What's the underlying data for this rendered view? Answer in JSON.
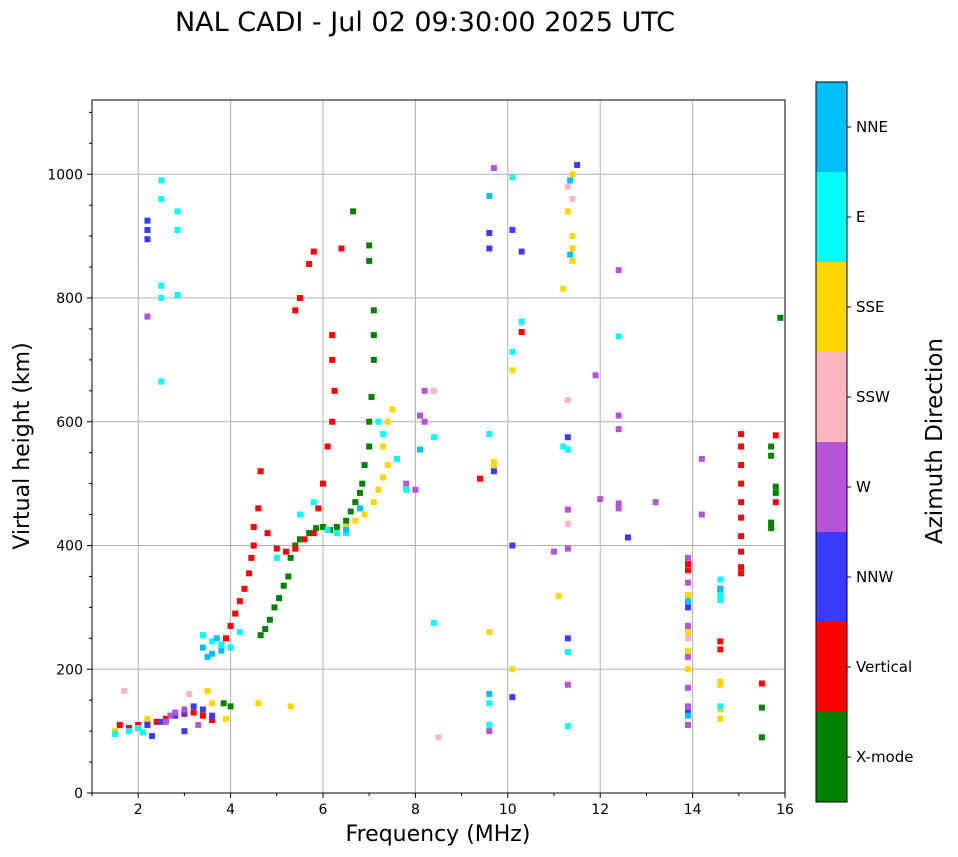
{
  "chart_data": {
    "type": "scatter",
    "title": "NAL CADI - Jul 02 09:30:00 2025 UTC",
    "xlabel": "Frequency (MHz)",
    "ylabel": "Virtual height (km)",
    "xlim": [
      1,
      16
    ],
    "ylim": [
      0,
      1120
    ],
    "xticks": [
      2,
      4,
      6,
      8,
      10,
      12,
      14,
      16
    ],
    "yticks": [
      0,
      200,
      400,
      600,
      800,
      1000
    ],
    "grid": true,
    "colorbar": {
      "title": "Azimuth Direction",
      "categories": [
        "X-mode",
        "Vertical",
        "NNW",
        "W",
        "SSW",
        "SSE",
        "E",
        "NNE"
      ],
      "colors": [
        "#008000",
        "#ff0000",
        "#3b3bff",
        "#b455d6",
        "#ffb6c1",
        "#ffd700",
        "#00ffff",
        "#00bfff"
      ]
    },
    "series": [
      {
        "name": "X-mode",
        "points": [
          [
            3.85,
            145
          ],
          [
            4.0,
            140
          ],
          [
            4.65,
            255
          ],
          [
            4.75,
            265
          ],
          [
            4.85,
            280
          ],
          [
            4.95,
            300
          ],
          [
            5.05,
            315
          ],
          [
            5.15,
            335
          ],
          [
            5.25,
            350
          ],
          [
            5.3,
            380
          ],
          [
            5.4,
            400
          ],
          [
            5.5,
            410
          ],
          [
            5.7,
            420
          ],
          [
            5.85,
            428
          ],
          [
            6.0,
            430
          ],
          [
            6.15,
            425
          ],
          [
            6.3,
            430
          ],
          [
            6.5,
            440
          ],
          [
            6.6,
            455
          ],
          [
            6.7,
            470
          ],
          [
            6.8,
            485
          ],
          [
            6.85,
            500
          ],
          [
            6.9,
            530
          ],
          [
            7.0,
            560
          ],
          [
            7.0,
            600
          ],
          [
            7.05,
            640
          ],
          [
            7.1,
            700
          ],
          [
            7.1,
            740
          ],
          [
            7.1,
            780
          ],
          [
            7.0,
            860
          ],
          [
            7.0,
            885
          ],
          [
            6.65,
            940
          ],
          [
            15.7,
            437
          ],
          [
            15.7,
            428
          ],
          [
            15.8,
            485
          ],
          [
            15.8,
            495
          ],
          [
            15.7,
            560
          ],
          [
            15.7,
            545
          ],
          [
            15.9,
            768
          ],
          [
            15.5,
            138
          ],
          [
            15.5,
            90
          ]
        ]
      },
      {
        "name": "Vertical",
        "points": [
          [
            1.6,
            110
          ],
          [
            1.8,
            105
          ],
          [
            2.0,
            110
          ],
          [
            2.2,
            112
          ],
          [
            2.4,
            115
          ],
          [
            2.6,
            120
          ],
          [
            2.8,
            125
          ],
          [
            3.0,
            128
          ],
          [
            3.2,
            130
          ],
          [
            3.4,
            125
          ],
          [
            3.6,
            118
          ],
          [
            3.9,
            250
          ],
          [
            4.0,
            270
          ],
          [
            4.1,
            290
          ],
          [
            4.2,
            310
          ],
          [
            4.3,
            330
          ],
          [
            4.4,
            355
          ],
          [
            4.45,
            380
          ],
          [
            4.5,
            400
          ],
          [
            4.5,
            430
          ],
          [
            4.6,
            460
          ],
          [
            4.65,
            520
          ],
          [
            4.8,
            420
          ],
          [
            5.0,
            395
          ],
          [
            5.2,
            390
          ],
          [
            5.4,
            395
          ],
          [
            5.6,
            410
          ],
          [
            5.8,
            420
          ],
          [
            5.9,
            460
          ],
          [
            6.0,
            500
          ],
          [
            6.1,
            560
          ],
          [
            6.2,
            600
          ],
          [
            6.25,
            650
          ],
          [
            6.2,
            700
          ],
          [
            6.2,
            740
          ],
          [
            6.4,
            880
          ],
          [
            5.7,
            855
          ],
          [
            5.8,
            875
          ],
          [
            5.5,
            800
          ],
          [
            5.4,
            780
          ],
          [
            9.4,
            508
          ],
          [
            10.3,
            745
          ],
          [
            13.9,
            370
          ],
          [
            13.9,
            360
          ],
          [
            14.6,
            245
          ],
          [
            14.6,
            232
          ],
          [
            14.6,
            330
          ],
          [
            15.05,
            580
          ],
          [
            15.05,
            560
          ],
          [
            15.05,
            530
          ],
          [
            15.05,
            500
          ],
          [
            15.05,
            470
          ],
          [
            15.05,
            445
          ],
          [
            15.05,
            415
          ],
          [
            15.05,
            390
          ],
          [
            15.05,
            365
          ],
          [
            15.05,
            355
          ],
          [
            15.8,
            470
          ],
          [
            15.8,
            578
          ],
          [
            15.5,
            177
          ]
        ]
      },
      {
        "name": "NNW",
        "points": [
          [
            2.0,
            105
          ],
          [
            2.2,
            110
          ],
          [
            2.5,
            115
          ],
          [
            2.8,
            125
          ],
          [
            3.0,
            130
          ],
          [
            3.2,
            140
          ],
          [
            3.4,
            135
          ],
          [
            3.6,
            125
          ],
          [
            2.2,
            895
          ],
          [
            2.2,
            910
          ],
          [
            2.2,
            925
          ],
          [
            9.6,
            880
          ],
          [
            9.6,
            905
          ],
          [
            10.1,
            400
          ],
          [
            10.1,
            910
          ],
          [
            10.1,
            155
          ],
          [
            10.3,
            875
          ],
          [
            11.3,
            575
          ],
          [
            11.3,
            250
          ],
          [
            11.5,
            1015
          ],
          [
            13.9,
            130
          ],
          [
            13.9,
            300
          ],
          [
            12.6,
            413
          ],
          [
            9.7,
            520
          ],
          [
            3.0,
            100
          ],
          [
            2.3,
            92
          ]
        ]
      },
      {
        "name": "W",
        "points": [
          [
            2.6,
            115
          ],
          [
            2.7,
            125
          ],
          [
            2.8,
            130
          ],
          [
            3.0,
            135
          ],
          [
            3.3,
            110
          ],
          [
            8.2,
            650
          ],
          [
            8.4,
            650
          ],
          [
            8.2,
            600
          ],
          [
            8.1,
            610
          ],
          [
            7.8,
            500
          ],
          [
            8.0,
            490
          ],
          [
            9.6,
            100
          ],
          [
            11.0,
            390
          ],
          [
            11.3,
            395
          ],
          [
            11.3,
            175
          ],
          [
            11.3,
            458
          ],
          [
            11.9,
            675
          ],
          [
            12.0,
            475
          ],
          [
            12.4,
            845
          ],
          [
            12.4,
            610
          ],
          [
            12.4,
            588
          ],
          [
            12.4,
            468
          ],
          [
            12.4,
            460
          ],
          [
            13.2,
            470
          ],
          [
            14.2,
            540
          ],
          [
            14.2,
            450
          ],
          [
            13.9,
            380
          ],
          [
            13.9,
            340
          ],
          [
            13.9,
            270
          ],
          [
            13.9,
            220
          ],
          [
            13.9,
            170
          ],
          [
            13.9,
            140
          ],
          [
            13.9,
            110
          ],
          [
            2.2,
            770
          ],
          [
            9.7,
            1010
          ]
        ]
      },
      {
        "name": "SSW",
        "points": [
          [
            1.7,
            165
          ],
          [
            3.1,
            160
          ],
          [
            8.4,
            650
          ],
          [
            8.5,
            90
          ],
          [
            10.3,
            760
          ],
          [
            11.3,
            635
          ],
          [
            11.4,
            960
          ],
          [
            11.3,
            980
          ],
          [
            11.3,
            435
          ],
          [
            13.9,
            250
          ]
        ]
      },
      {
        "name": "SSE",
        "points": [
          [
            1.5,
            100
          ],
          [
            2.2,
            120
          ],
          [
            3.5,
            165
          ],
          [
            3.6,
            145
          ],
          [
            3.9,
            120
          ],
          [
            5.3,
            140
          ],
          [
            6.5,
            430
          ],
          [
            6.7,
            440
          ],
          [
            6.9,
            450
          ],
          [
            7.1,
            470
          ],
          [
            7.2,
            490
          ],
          [
            7.3,
            510
          ],
          [
            7.4,
            530
          ],
          [
            7.3,
            560
          ],
          [
            7.4,
            600
          ],
          [
            7.5,
            620
          ],
          [
            9.7,
            530
          ],
          [
            9.7,
            535
          ],
          [
            10.1,
            683
          ],
          [
            10.1,
            200
          ],
          [
            11.1,
            318
          ],
          [
            11.2,
            815
          ],
          [
            11.4,
            860
          ],
          [
            11.4,
            880
          ],
          [
            11.4,
            900
          ],
          [
            11.3,
            940
          ],
          [
            11.4,
            1000
          ],
          [
            13.9,
            200
          ],
          [
            13.9,
            230
          ],
          [
            13.9,
            260
          ],
          [
            13.9,
            320
          ],
          [
            14.6,
            180
          ],
          [
            14.6,
            175
          ],
          [
            14.6,
            135
          ],
          [
            14.6,
            120
          ],
          [
            9.6,
            260
          ],
          [
            4.6,
            145
          ]
        ]
      },
      {
        "name": "E",
        "points": [
          [
            1.5,
            95
          ],
          [
            1.8,
            100
          ],
          [
            2.0,
            105
          ],
          [
            2.1,
            98
          ],
          [
            2.5,
            990
          ],
          [
            2.5,
            960
          ],
          [
            2.5,
            820
          ],
          [
            2.5,
            800
          ],
          [
            2.5,
            665
          ],
          [
            2.85,
            940
          ],
          [
            2.85,
            910
          ],
          [
            2.85,
            805
          ],
          [
            3.4,
            255
          ],
          [
            3.6,
            245
          ],
          [
            3.8,
            240
          ],
          [
            4.0,
            235
          ],
          [
            4.2,
            260
          ],
          [
            5.0,
            380
          ],
          [
            5.5,
            450
          ],
          [
            5.8,
            470
          ],
          [
            6.1,
            425
          ],
          [
            6.3,
            420
          ],
          [
            6.5,
            420
          ],
          [
            7.2,
            600
          ],
          [
            7.3,
            580
          ],
          [
            7.6,
            540
          ],
          [
            7.8,
            490
          ],
          [
            8.4,
            575
          ],
          [
            8.4,
            275
          ],
          [
            9.6,
            580
          ],
          [
            10.1,
            995
          ],
          [
            10.1,
            713
          ],
          [
            10.3,
            762
          ],
          [
            11.2,
            560
          ],
          [
            11.3,
            555
          ],
          [
            11.3,
            228
          ],
          [
            11.3,
            108
          ],
          [
            12.4,
            738
          ],
          [
            14.6,
            345
          ],
          [
            14.6,
            322
          ],
          [
            14.6,
            312
          ],
          [
            14.6,
            140
          ],
          [
            9.6,
            110
          ],
          [
            9.6,
            145
          ]
        ]
      },
      {
        "name": "NNE",
        "points": [
          [
            3.4,
            235
          ],
          [
            3.5,
            220
          ],
          [
            3.6,
            225
          ],
          [
            3.8,
            230
          ],
          [
            3.7,
            250
          ],
          [
            6.5,
            425
          ],
          [
            6.8,
            460
          ],
          [
            8.1,
            555
          ],
          [
            9.6,
            965
          ],
          [
            9.6,
            160
          ],
          [
            13.9,
            125
          ],
          [
            13.9,
            310
          ],
          [
            14.6,
            330
          ],
          [
            11.35,
            990
          ],
          [
            11.35,
            870
          ]
        ]
      }
    ]
  }
}
